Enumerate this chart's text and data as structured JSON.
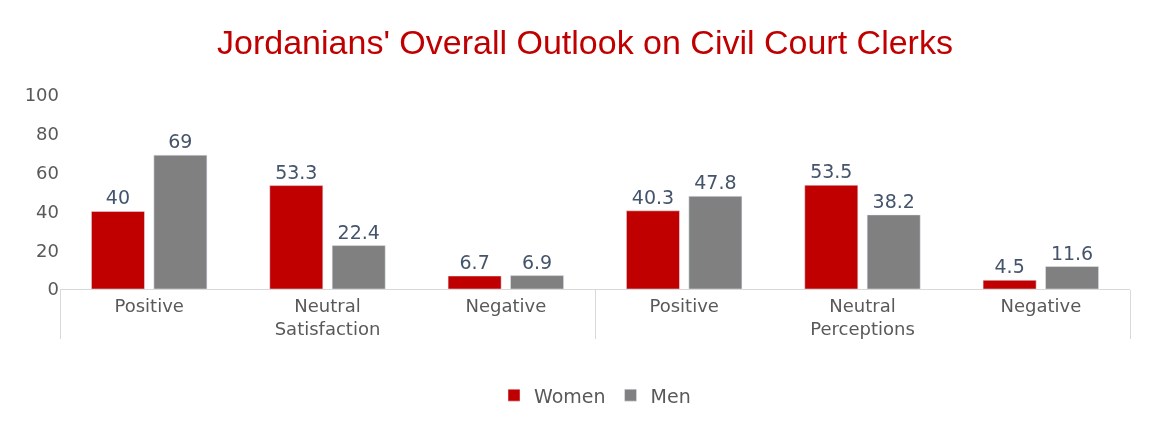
{
  "chart_data": {
    "type": "bar",
    "title": "Jordanians' Overall Outlook on Civil Court Clerks",
    "categories": [
      "Positive",
      "Neutral",
      "Negative",
      "Positive",
      "Neutral",
      "Negative"
    ],
    "annotations": [
      "Satisfaction",
      "Perceptions"
    ],
    "series": [
      {
        "name": "Women",
        "color": "#c00000",
        "values": [
          40,
          53.3,
          6.7,
          40.3,
          53.5,
          4.5
        ]
      },
      {
        "name": "Men",
        "color": "#808080",
        "values": [
          69,
          22.4,
          6.9,
          47.8,
          38.2,
          11.6
        ]
      }
    ],
    "ylim": [
      0,
      100
    ],
    "yticks": [
      0,
      20,
      40,
      60,
      80,
      100
    ],
    "grid": false,
    "legend": "bottom",
    "data_labels": true
  }
}
